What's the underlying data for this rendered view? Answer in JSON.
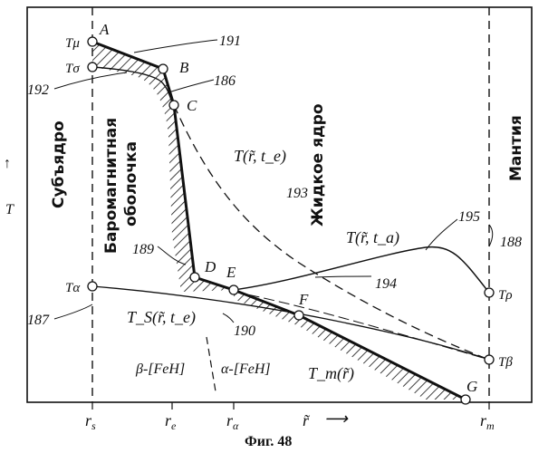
{
  "caption": "Фиг. 48",
  "zones": {
    "subcore": "Субъядро",
    "baromagnetic": [
      "Баромагнитная",
      "оболочка"
    ],
    "liquid_core": "Жидкое ядро",
    "mantle": "Мантия"
  },
  "axis": {
    "y_label": "T",
    "y_arrow": "↑",
    "x_label": "r̃",
    "x_arrow": "⟶"
  },
  "x_ticks": [
    "r_s",
    "r_e",
    "r_α",
    "r_m"
  ],
  "y_ticks_left": [
    "Tμ",
    "Tσ",
    "Tα"
  ],
  "y_ticks_right": [
    "Tρ",
    "Tβ"
  ],
  "points": [
    "A",
    "B",
    "C",
    "D",
    "E",
    "F",
    "G"
  ],
  "curve_labels": {
    "t_te": "T(r̃, t_e)",
    "t_ta": "T(r̃, t_a)",
    "ts_te": "T_S(r̃, t_e)",
    "tm": "T_m(r̃)"
  },
  "phases": [
    "β-[FeH]",
    "α-[FeH]"
  ],
  "ref_numbers": [
    "191",
    "192",
    "186",
    "193",
    "195",
    "189",
    "188",
    "194",
    "187",
    "190"
  ]
}
